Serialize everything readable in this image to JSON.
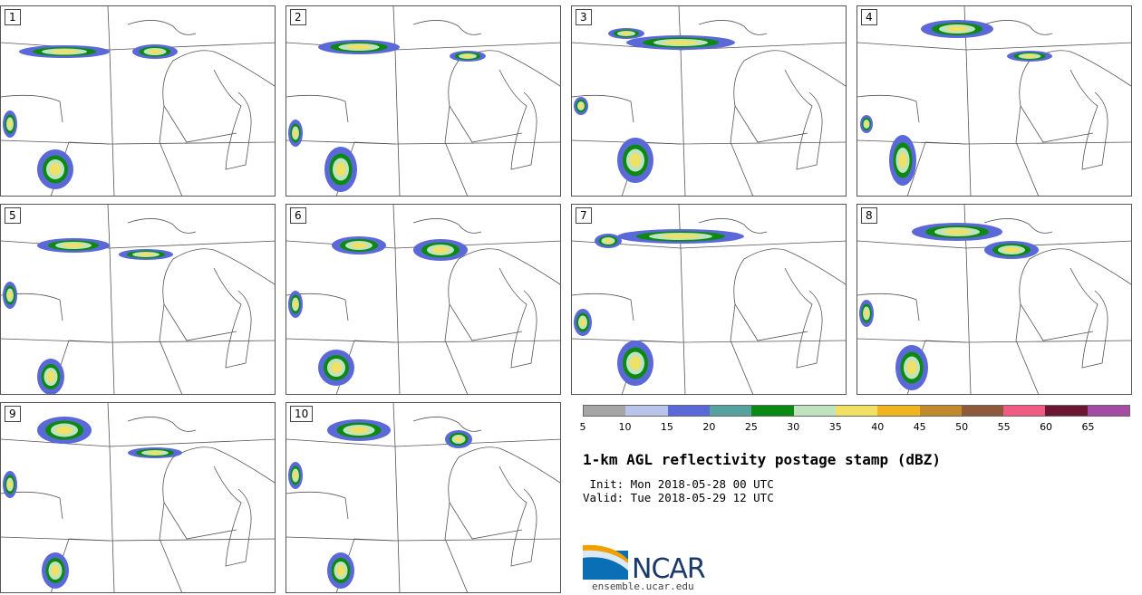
{
  "panels": [
    "1",
    "2",
    "3",
    "4",
    "5",
    "6",
    "7",
    "8",
    "9",
    "10"
  ],
  "colorbar": {
    "colors": [
      "#a5a5a5",
      "#b8c4ea",
      "#5b68d8",
      "#55a29e",
      "#0a8a13",
      "#bfe3bf",
      "#f0e164",
      "#f0b41f",
      "#c18b2c",
      "#8d5a3c",
      "#f15a82",
      "#6b1633",
      "#a44ca4"
    ],
    "ticks": [
      "5",
      "10",
      "15",
      "20",
      "25",
      "30",
      "35",
      "40",
      "45",
      "50",
      "55",
      "60",
      "65"
    ]
  },
  "title": "1-km AGL reflectivity postage stamp (dBZ)",
  "init": " Init: Mon 2018-05-28 00 UTC",
  "valid": "Valid: Tue 2018-05-29 12 UTC",
  "logo": {
    "text": "NCAR",
    "site": "ensemble.ucar.edu"
  }
}
